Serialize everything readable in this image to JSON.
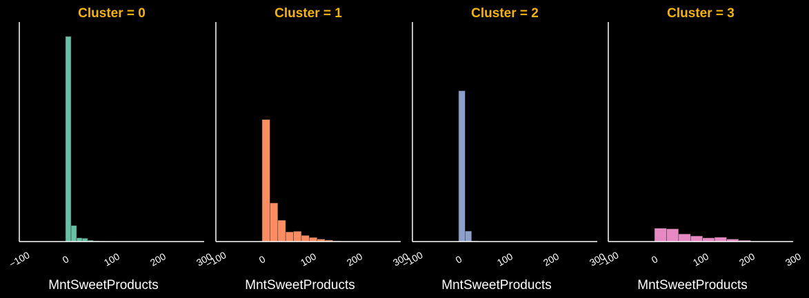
{
  "colors": {
    "background": "#000000",
    "title": "#f5b400",
    "axis": "#ffffff",
    "bar_edge": "#3a3a3a"
  },
  "chart_data": [
    {
      "type": "bar",
      "title": "Cluster = 0",
      "xlabel": "MntSweetProducts",
      "ylabel": "",
      "xlim": [
        -100,
        300
      ],
      "xticks": [
        -100,
        0,
        100,
        200,
        300
      ],
      "xtick_labels": [
        "−100",
        "0",
        "100",
        "200",
        "300"
      ],
      "y_visible": false,
      "grid": false,
      "color": "#66c2a5",
      "bins": [
        [
          0,
          12
        ],
        [
          12,
          24
        ],
        [
          24,
          36
        ],
        [
          36,
          48
        ],
        [
          48,
          60
        ],
        [
          60,
          72
        ],
        [
          72,
          84
        ],
        [
          84,
          96
        ],
        [
          96,
          108
        ],
        [
          108,
          120
        ],
        [
          120,
          132
        ],
        [
          132,
          144
        ],
        [
          144,
          156
        ],
        [
          156,
          168
        ],
        [
          168,
          180
        ],
        [
          180,
          192
        ],
        [
          192,
          204
        ],
        [
          204,
          216
        ],
        [
          216,
          228
        ],
        [
          228,
          240
        ],
        [
          240,
          252
        ],
        [
          252,
          264
        ]
      ],
      "values": [
        1000,
        78,
        18,
        16,
        6,
        3,
        2,
        1,
        1,
        0,
        0,
        0,
        0,
        0,
        0,
        0,
        0,
        0,
        0,
        0,
        0,
        0
      ]
    },
    {
      "type": "bar",
      "title": "Cluster = 1",
      "xlabel": "MntSweetProducts",
      "ylabel": "",
      "xlim": [
        -100,
        300
      ],
      "xticks": [
        -100,
        0,
        100,
        200,
        300
      ],
      "xtick_labels": [
        "−100",
        "0",
        "100",
        "200",
        "300"
      ],
      "y_visible": false,
      "grid": false,
      "color": "#fc8d62",
      "bins": [
        [
          0,
          17
        ],
        [
          17,
          34
        ],
        [
          34,
          51
        ],
        [
          51,
          68
        ],
        [
          68,
          85
        ],
        [
          85,
          102
        ],
        [
          102,
          119
        ],
        [
          119,
          136
        ],
        [
          136,
          153
        ],
        [
          153,
          170
        ],
        [
          170,
          187
        ],
        [
          187,
          204
        ]
      ],
      "values": [
        595,
        188,
        104,
        47,
        50,
        30,
        20,
        12,
        7,
        3,
        1,
        1
      ]
    },
    {
      "type": "bar",
      "title": "Cluster = 2",
      "xlabel": "MntSweetProducts",
      "ylabel": "",
      "xlim": [
        -100,
        300
      ],
      "xticks": [
        -100,
        0,
        100,
        200,
        300
      ],
      "xtick_labels": [
        "−100",
        "0",
        "100",
        "200",
        "300"
      ],
      "y_visible": false,
      "grid": false,
      "color": "#8da0cb",
      "bins": [
        [
          0,
          14
        ],
        [
          14,
          28
        ],
        [
          28,
          42
        ],
        [
          42,
          56
        ],
        [
          56,
          70
        ],
        [
          70,
          84
        ]
      ],
      "values": [
        735,
        51,
        3,
        1,
        0,
        0
      ]
    },
    {
      "type": "bar",
      "title": "Cluster = 3",
      "xlabel": "MntSweetProducts",
      "ylabel": "",
      "xlim": [
        -100,
        300
      ],
      "xticks": [
        -100,
        0,
        100,
        200,
        300
      ],
      "xtick_labels": [
        "−100",
        "0",
        "100",
        "200",
        "300"
      ],
      "y_visible": false,
      "grid": false,
      "color": "#e78ac3",
      "bins": [
        [
          0,
          26
        ],
        [
          26,
          52
        ],
        [
          52,
          78
        ],
        [
          78,
          104
        ],
        [
          104,
          130
        ],
        [
          130,
          156
        ],
        [
          156,
          182
        ],
        [
          182,
          208
        ]
      ],
      "values": [
        65,
        62,
        37,
        27,
        18,
        21,
        12,
        6
      ]
    }
  ]
}
